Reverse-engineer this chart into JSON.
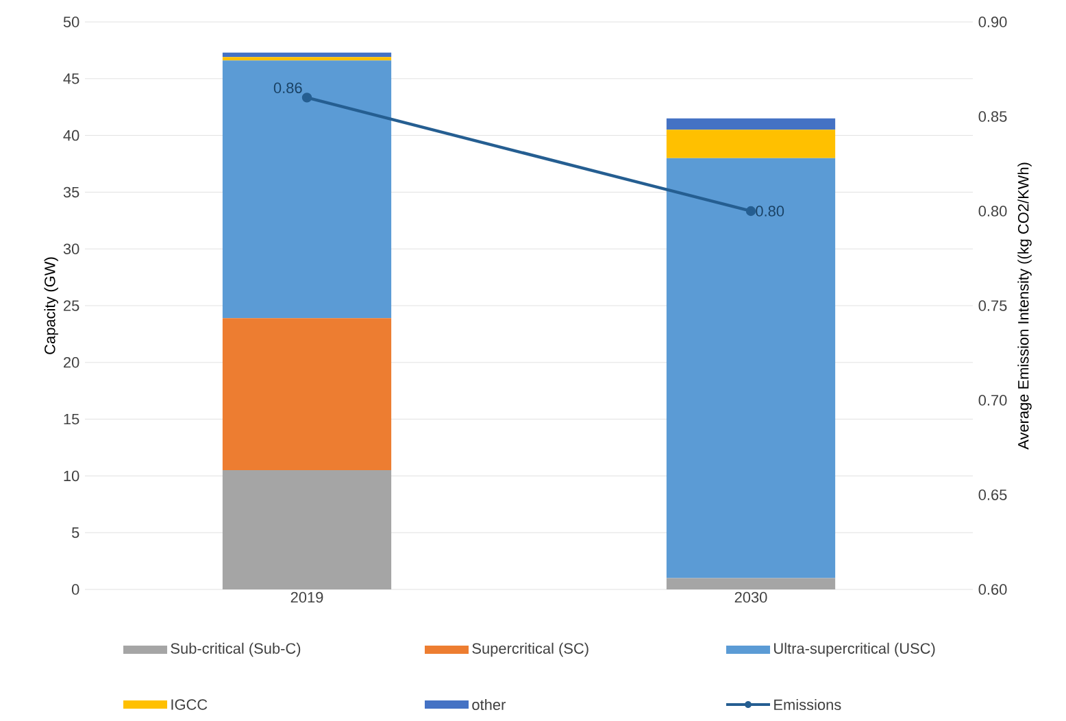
{
  "chart_data": {
    "type": "bar",
    "stacked": true,
    "categories": [
      "2019",
      "2030"
    ],
    "ylabel": "Capacity (GW)",
    "y2label": "Average Emission Intensity ((kg CO2/KWh)",
    "ylim": [
      0,
      50
    ],
    "yticks": [
      0,
      5,
      10,
      15,
      20,
      25,
      30,
      35,
      40,
      45,
      50
    ],
    "y2lim": [
      0.6,
      0.9
    ],
    "y2ticks": [
      {
        "value": 0.6,
        "label": "0.60"
      },
      {
        "value": 0.65,
        "label": "0.65"
      },
      {
        "value": 0.7,
        "label": "0.70"
      },
      {
        "value": 0.75,
        "label": "0.75"
      },
      {
        "value": 0.8,
        "label": "0.80"
      },
      {
        "value": 0.85,
        "label": "0.85"
      },
      {
        "value": 0.9,
        "label": "0.90"
      }
    ],
    "grid": "y",
    "legend": "bottom",
    "series": [
      {
        "name": "Sub-critical (Sub-C)",
        "color": "#a5a5a5",
        "values": [
          10.5,
          1.0
        ]
      },
      {
        "name": "Supercritical (SC)",
        "color": "#ed7d31",
        "values": [
          13.4,
          0
        ]
      },
      {
        "name": "Ultra-supercritical (USC)",
        "color": "#5b9bd5",
        "values": [
          22.7,
          37.0
        ]
      },
      {
        "name": "IGCC",
        "color": "#ffc000",
        "values": [
          0.3,
          2.5
        ]
      },
      {
        "name": "other",
        "color": "#4472c4",
        "values": [
          0.4,
          1.0
        ]
      },
      {
        "name": "Emissions",
        "type": "line",
        "axis": "y2",
        "color": "#255e91",
        "marker": "circle",
        "values": [
          0.86,
          0.8
        ],
        "value_labels": [
          "0.86",
          "0.80"
        ]
      }
    ]
  }
}
